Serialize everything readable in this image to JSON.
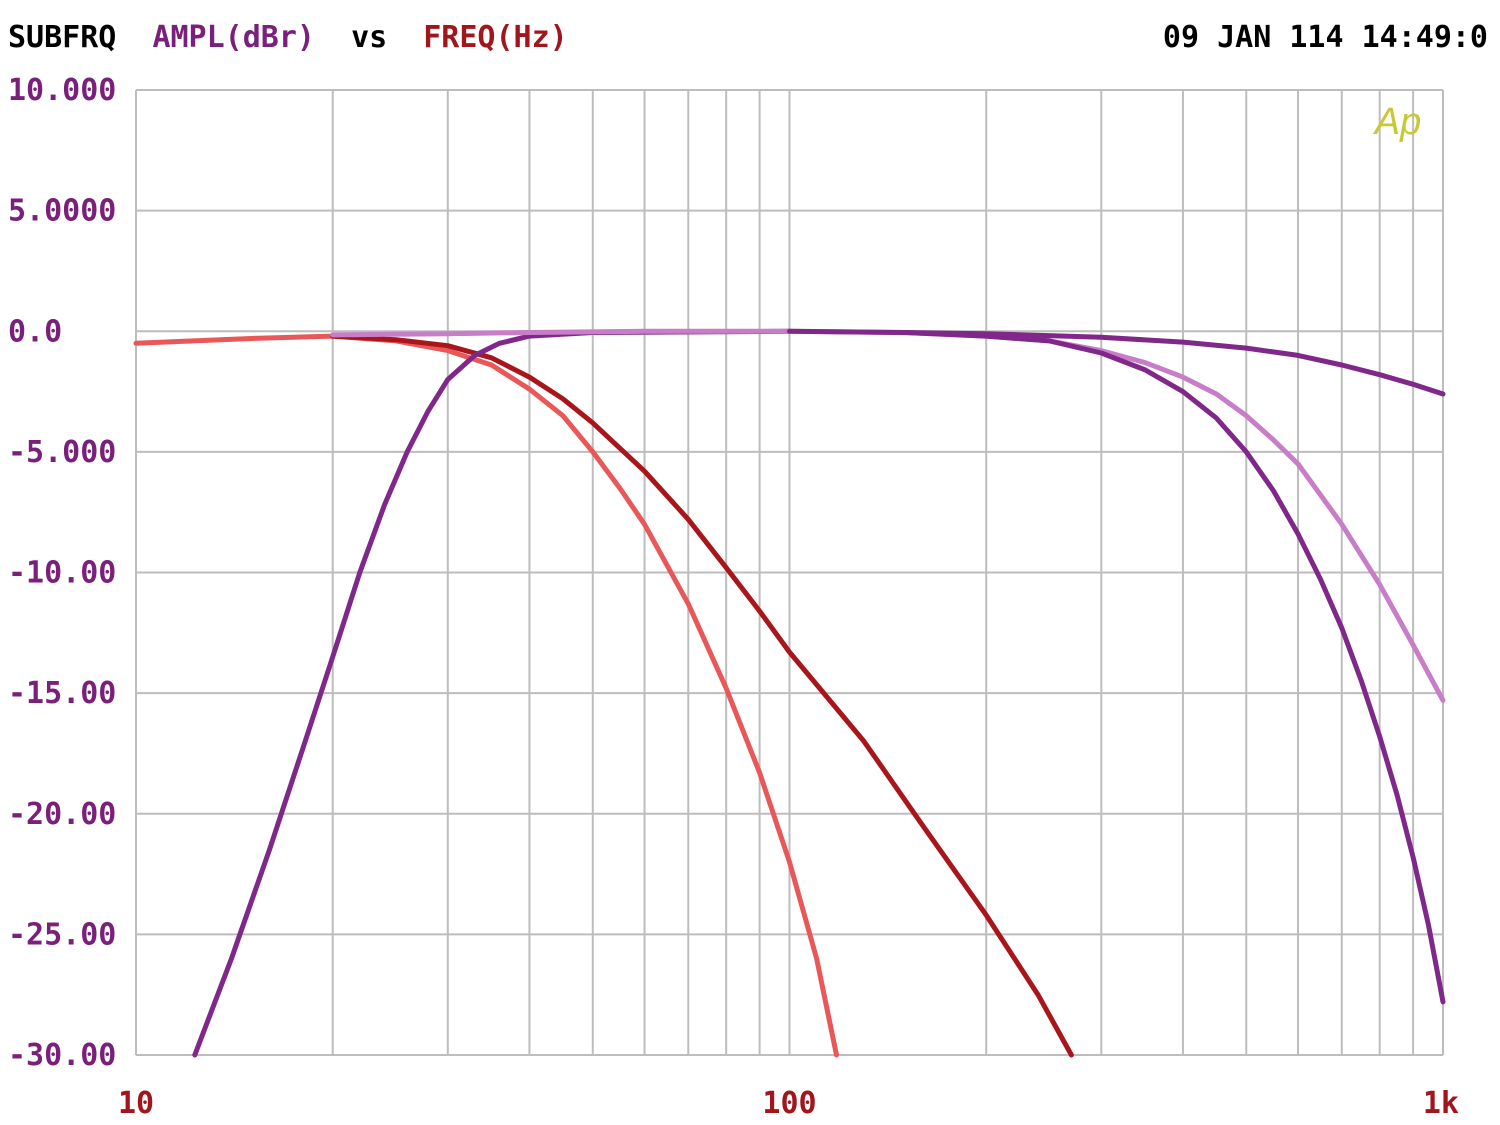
{
  "header": {
    "program": "SUBFRQ",
    "y_quantity": "AMPL(dBr)",
    "vs": "vs",
    "x_quantity": "FREQ(Hz)",
    "timestamp": "09 JAN 114 14:49:0"
  },
  "logo_text": "Ap",
  "colors": {
    "background": "#ffffff",
    "grid": "#bdbdbd",
    "header_text": "#000000",
    "y_axis_text": "#7a1f7a",
    "x_axis_text": "#a0161c",
    "logo": "#c8c832"
  },
  "chart_data": {
    "type": "line",
    "xlabel": "FREQ(Hz)",
    "ylabel": "AMPL(dBr)",
    "x_scale": "log",
    "xlim": [
      10,
      1000
    ],
    "ylim": [
      -30,
      10
    ],
    "x_tick_labels": [
      "10",
      "100",
      "1k"
    ],
    "x_tick_values": [
      10,
      100,
      1000
    ],
    "y_tick_labels": [
      "10.000",
      "5.0000",
      "0.0",
      "-5.000",
      "-10.00",
      "-15.00",
      "-20.00",
      "-25.00",
      "-30.00"
    ],
    "y_tick_values": [
      10,
      5,
      0,
      -5,
      -10,
      -15,
      -20,
      -25,
      -30
    ],
    "grid": true,
    "series": [
      {
        "color": "#e85858",
        "points": [
          [
            10,
            -0.5
          ],
          [
            15,
            -0.3
          ],
          [
            20,
            -0.2
          ],
          [
            25,
            -0.4
          ],
          [
            30,
            -0.8
          ],
          [
            35,
            -1.4
          ],
          [
            40,
            -2.4
          ],
          [
            45,
            -3.5
          ],
          [
            50,
            -5.0
          ],
          [
            55,
            -6.5
          ],
          [
            60,
            -8.0
          ],
          [
            70,
            -11.3
          ],
          [
            80,
            -14.8
          ],
          [
            90,
            -18.3
          ],
          [
            100,
            -22.0
          ],
          [
            110,
            -26.0
          ],
          [
            118,
            -30.0
          ]
        ]
      },
      {
        "color": "#a8161c",
        "points": [
          [
            20,
            -0.2
          ],
          [
            25,
            -0.35
          ],
          [
            30,
            -0.6
          ],
          [
            35,
            -1.1
          ],
          [
            40,
            -1.9
          ],
          [
            45,
            -2.8
          ],
          [
            50,
            -3.8
          ],
          [
            60,
            -5.8
          ],
          [
            70,
            -7.8
          ],
          [
            80,
            -9.8
          ],
          [
            90,
            -11.6
          ],
          [
            100,
            -13.3
          ],
          [
            130,
            -17.0
          ],
          [
            160,
            -20.5
          ],
          [
            200,
            -24.2
          ],
          [
            240,
            -27.5
          ],
          [
            270,
            -30.0
          ]
        ]
      },
      {
        "color": "#80288a",
        "points": [
          [
            12.3,
            -30.0
          ],
          [
            14,
            -26.0
          ],
          [
            16,
            -21.5
          ],
          [
            18,
            -17.3
          ],
          [
            20,
            -13.5
          ],
          [
            22,
            -10.0
          ],
          [
            24,
            -7.2
          ],
          [
            26,
            -5.0
          ],
          [
            28,
            -3.3
          ],
          [
            30,
            -2.0
          ],
          [
            33,
            -1.0
          ],
          [
            36,
            -0.5
          ],
          [
            40,
            -0.2
          ],
          [
            50,
            -0.05
          ],
          [
            100,
            0.0
          ]
        ]
      },
      {
        "color": "#c87dc8",
        "points": [
          [
            20,
            -0.15
          ],
          [
            30,
            -0.1
          ],
          [
            40,
            -0.05
          ],
          [
            60,
            0.0
          ],
          [
            100,
            0.0
          ],
          [
            150,
            -0.05
          ],
          [
            200,
            -0.2
          ],
          [
            250,
            -0.4
          ],
          [
            300,
            -0.8
          ],
          [
            350,
            -1.3
          ],
          [
            400,
            -1.9
          ],
          [
            450,
            -2.6
          ],
          [
            500,
            -3.5
          ],
          [
            550,
            -4.5
          ],
          [
            600,
            -5.5
          ],
          [
            700,
            -8.0
          ],
          [
            800,
            -10.5
          ],
          [
            900,
            -13.0
          ],
          [
            1000,
            -15.3
          ]
        ]
      },
      {
        "color": "#80288a",
        "points": [
          [
            100,
            0.0
          ],
          [
            150,
            -0.05
          ],
          [
            200,
            -0.2
          ],
          [
            250,
            -0.4
          ],
          [
            300,
            -0.9
          ],
          [
            350,
            -1.6
          ],
          [
            400,
            -2.5
          ],
          [
            450,
            -3.6
          ],
          [
            500,
            -5.0
          ],
          [
            550,
            -6.6
          ],
          [
            600,
            -8.4
          ],
          [
            650,
            -10.3
          ],
          [
            700,
            -12.3
          ],
          [
            750,
            -14.5
          ],
          [
            800,
            -16.8
          ],
          [
            850,
            -19.2
          ],
          [
            900,
            -21.8
          ],
          [
            950,
            -24.6
          ],
          [
            1000,
            -27.8
          ]
        ]
      },
      {
        "color": "#80288a",
        "points": [
          [
            150,
            -0.05
          ],
          [
            200,
            -0.1
          ],
          [
            300,
            -0.25
          ],
          [
            400,
            -0.45
          ],
          [
            500,
            -0.7
          ],
          [
            600,
            -1.0
          ],
          [
            700,
            -1.4
          ],
          [
            800,
            -1.8
          ],
          [
            900,
            -2.2
          ],
          [
            1000,
            -2.6
          ]
        ]
      }
    ]
  }
}
